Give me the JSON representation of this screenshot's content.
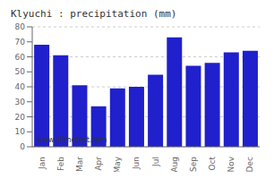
{
  "chart_data": {
    "type": "bar",
    "title": "Klyuchi : precipitation (mm)",
    "categories": [
      "Jan",
      "Feb",
      "Mar",
      "Apr",
      "May",
      "Jun",
      "Jul",
      "Aug",
      "Sep",
      "Oct",
      "Nov",
      "Dec"
    ],
    "values": [
      68,
      61,
      41,
      27,
      39,
      40,
      48,
      73,
      54,
      56,
      63,
      64
    ],
    "color": "#2020cc",
    "ylim": [
      0,
      80
    ],
    "yticks": [
      0,
      10,
      20,
      30,
      40,
      50,
      60,
      70,
      80
    ],
    "grid": true,
    "annotations": [
      "www.allmetsat.com"
    ]
  }
}
